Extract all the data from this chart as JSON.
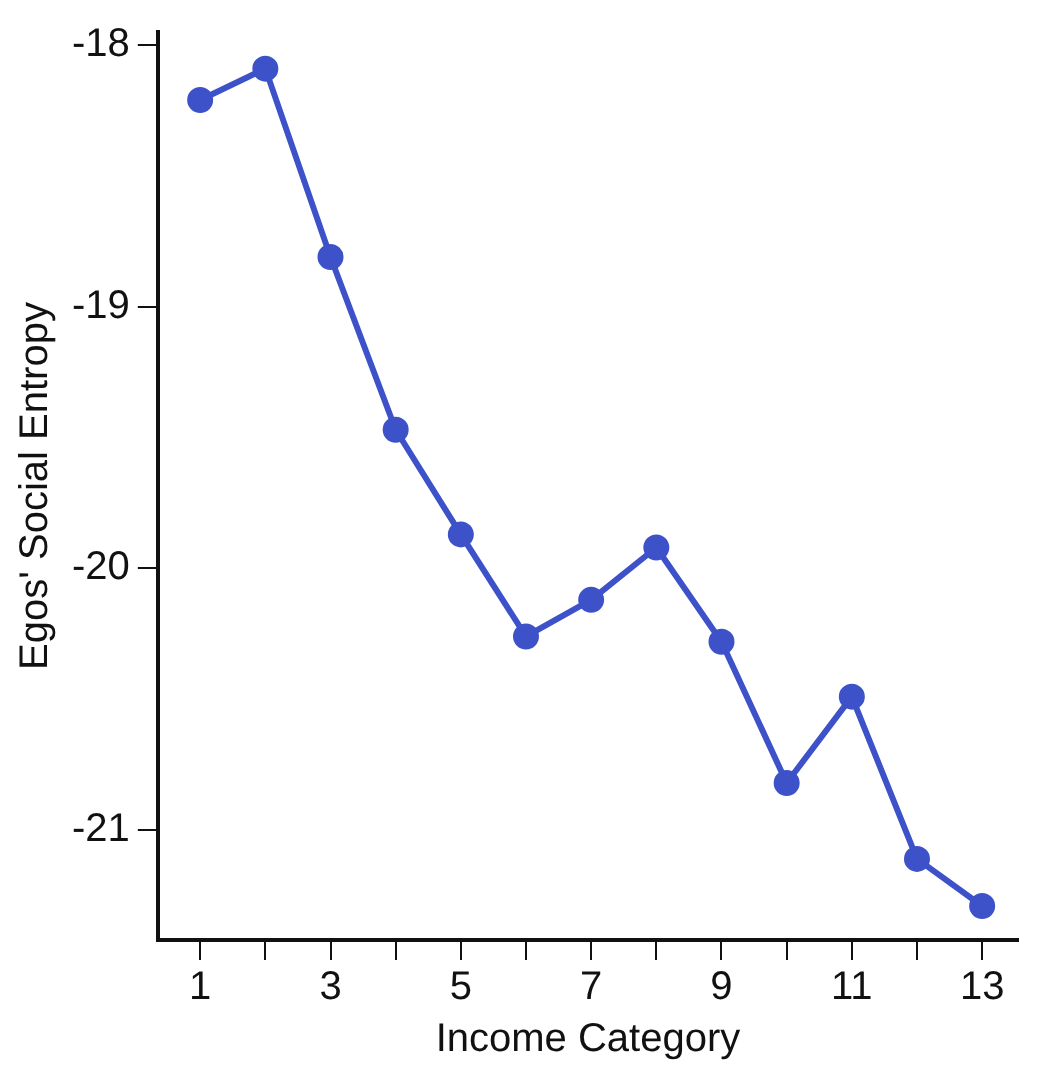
{
  "chart_data": {
    "type": "line",
    "xlabel": "Income Category",
    "ylabel": "Egos' Social Entropy",
    "x": [
      1,
      2,
      3,
      4,
      5,
      6,
      7,
      8,
      9,
      10,
      11,
      12,
      13
    ],
    "values": [
      -18.21,
      -18.09,
      -18.81,
      -19.47,
      -19.87,
      -20.26,
      -20.12,
      -19.92,
      -20.28,
      -20.82,
      -20.49,
      -21.11,
      -21.29
    ],
    "color": "#3d52c8",
    "marker": "circle",
    "line_style": "solid",
    "grid": false,
    "legend": false,
    "xlim": [
      0.35,
      13.55
    ],
    "xticks": [
      1,
      {
        "value": 2,
        "label": null
      },
      3,
      {
        "value": 4,
        "label": null
      },
      5,
      {
        "value": 6,
        "label": null
      },
      7,
      {
        "value": 8,
        "label": null
      },
      9,
      {
        "value": 10,
        "label": null
      },
      11,
      {
        "value": 12,
        "label": null
      },
      13
    ],
    "ylim": [
      -21.42,
      -17.95
    ],
    "yticks": [
      -21,
      -20,
      -19,
      -18
    ]
  }
}
